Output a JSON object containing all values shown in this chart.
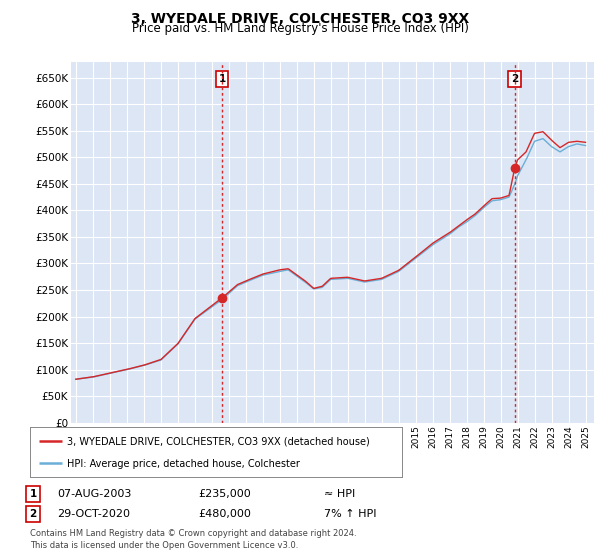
{
  "title": "3, WYEDALE DRIVE, COLCHESTER, CO3 9XX",
  "subtitle": "Price paid vs. HM Land Registry's House Price Index (HPI)",
  "ylim": [
    0,
    680000
  ],
  "yticks": [
    0,
    50000,
    100000,
    150000,
    200000,
    250000,
    300000,
    350000,
    400000,
    450000,
    500000,
    550000,
    600000,
    650000
  ],
  "x_start_year": 1995,
  "x_end_year": 2025,
  "sale1_year": 2003.6,
  "sale1_price": 235000,
  "sale1_label": "1",
  "sale1_date": "07-AUG-2003",
  "sale1_note": "≈ HPI",
  "sale2_year": 2020.83,
  "sale2_price": 480000,
  "sale2_label": "2",
  "sale2_date": "29-OCT-2020",
  "sale2_note": "7% ↑ HPI",
  "legend_line1": "3, WYEDALE DRIVE, COLCHESTER, CO3 9XX (detached house)",
  "legend_line2": "HPI: Average price, detached house, Colchester",
  "footer1": "Contains HM Land Registry data © Crown copyright and database right 2024.",
  "footer2": "This data is licensed under the Open Government Licence v3.0.",
  "hpi_color": "#6baed6",
  "price_color": "#d62728",
  "dashed_color": "#d62728",
  "background_color": "#dce6f5",
  "grid_color": "#ffffff",
  "title_fontsize": 10,
  "subtitle_fontsize": 8.5,
  "hpi_control_points": [
    [
      1995,
      82000
    ],
    [
      1996,
      86000
    ],
    [
      1997,
      93000
    ],
    [
      1998,
      100000
    ],
    [
      1999,
      108000
    ],
    [
      2000,
      118000
    ],
    [
      2001,
      148000
    ],
    [
      2002,
      195000
    ],
    [
      2003.6,
      232000
    ],
    [
      2004.5,
      258000
    ],
    [
      2005,
      265000
    ],
    [
      2006,
      278000
    ],
    [
      2007,
      285000
    ],
    [
      2007.5,
      288000
    ],
    [
      2008.5,
      265000
    ],
    [
      2009,
      252000
    ],
    [
      2009.5,
      255000
    ],
    [
      2010,
      270000
    ],
    [
      2011,
      272000
    ],
    [
      2012,
      265000
    ],
    [
      2013,
      270000
    ],
    [
      2014,
      285000
    ],
    [
      2015,
      310000
    ],
    [
      2016,
      335000
    ],
    [
      2017,
      355000
    ],
    [
      2017.5,
      368000
    ],
    [
      2018,
      378000
    ],
    [
      2018.5,
      390000
    ],
    [
      2019,
      405000
    ],
    [
      2019.5,
      418000
    ],
    [
      2020,
      420000
    ],
    [
      2020.5,
      425000
    ],
    [
      2020.83,
      449000
    ],
    [
      2021,
      465000
    ],
    [
      2021.5,
      495000
    ],
    [
      2022,
      530000
    ],
    [
      2022.5,
      535000
    ],
    [
      2023,
      520000
    ],
    [
      2023.5,
      510000
    ],
    [
      2024,
      520000
    ],
    [
      2024.5,
      525000
    ],
    [
      2025,
      522000
    ]
  ],
  "price_control_points": [
    [
      1995,
      82000
    ],
    [
      1996,
      86500
    ],
    [
      1997,
      93500
    ],
    [
      1998,
      100500
    ],
    [
      1999,
      108500
    ],
    [
      2000,
      119000
    ],
    [
      2001,
      149000
    ],
    [
      2002,
      196000
    ],
    [
      2003.6,
      235000
    ],
    [
      2004.5,
      260000
    ],
    [
      2005,
      267000
    ],
    [
      2006,
      280000
    ],
    [
      2007,
      288000
    ],
    [
      2007.5,
      290000
    ],
    [
      2008.5,
      267000
    ],
    [
      2009,
      253000
    ],
    [
      2009.5,
      257000
    ],
    [
      2010,
      272000
    ],
    [
      2011,
      274000
    ],
    [
      2012,
      267000
    ],
    [
      2013,
      272000
    ],
    [
      2014,
      287000
    ],
    [
      2015,
      312000
    ],
    [
      2016,
      338000
    ],
    [
      2017,
      358000
    ],
    [
      2017.5,
      370000
    ],
    [
      2018,
      382000
    ],
    [
      2018.5,
      393000
    ],
    [
      2019,
      408000
    ],
    [
      2019.5,
      422000
    ],
    [
      2020,
      423000
    ],
    [
      2020.5,
      428000
    ],
    [
      2020.83,
      480000
    ],
    [
      2021,
      495000
    ],
    [
      2021.5,
      510000
    ],
    [
      2022,
      545000
    ],
    [
      2022.5,
      548000
    ],
    [
      2023,
      532000
    ],
    [
      2023.5,
      518000
    ],
    [
      2024,
      528000
    ],
    [
      2024.5,
      530000
    ],
    [
      2025,
      528000
    ]
  ]
}
